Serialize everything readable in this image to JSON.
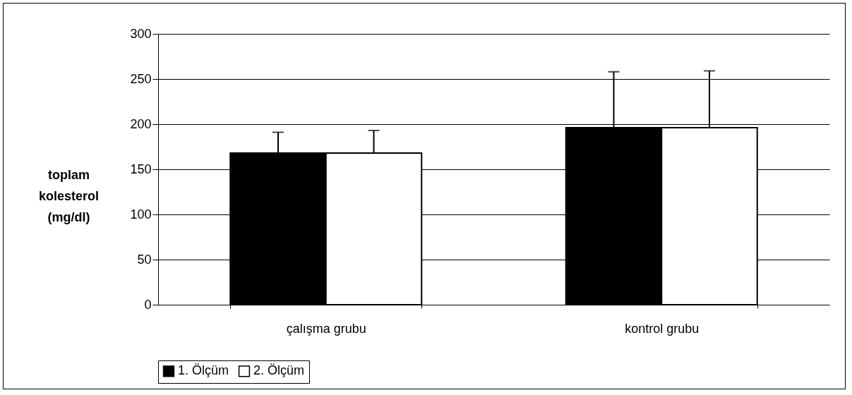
{
  "chart_data": {
    "type": "bar",
    "ylabel": "toplam kolesterol (mg/dl)",
    "categories": [
      "çalışma grubu",
      "kontrol grubu"
    ],
    "series": [
      {
        "name": "1. Ölçüm",
        "color": "#000000",
        "values": [
          168,
          196
        ],
        "errors": [
          [
            168,
            191
          ],
          [
            196,
            258
          ]
        ]
      },
      {
        "name": "2. Ölçüm",
        "color": "#ffffff",
        "values": [
          168,
          196
        ],
        "errors": [
          [
            168,
            193
          ],
          [
            196,
            259
          ]
        ]
      }
    ],
    "ylim": [
      0,
      300
    ],
    "yticks": [
      0,
      50,
      100,
      150,
      200,
      250,
      300
    ],
    "grid": "y",
    "legend": "bottom"
  }
}
